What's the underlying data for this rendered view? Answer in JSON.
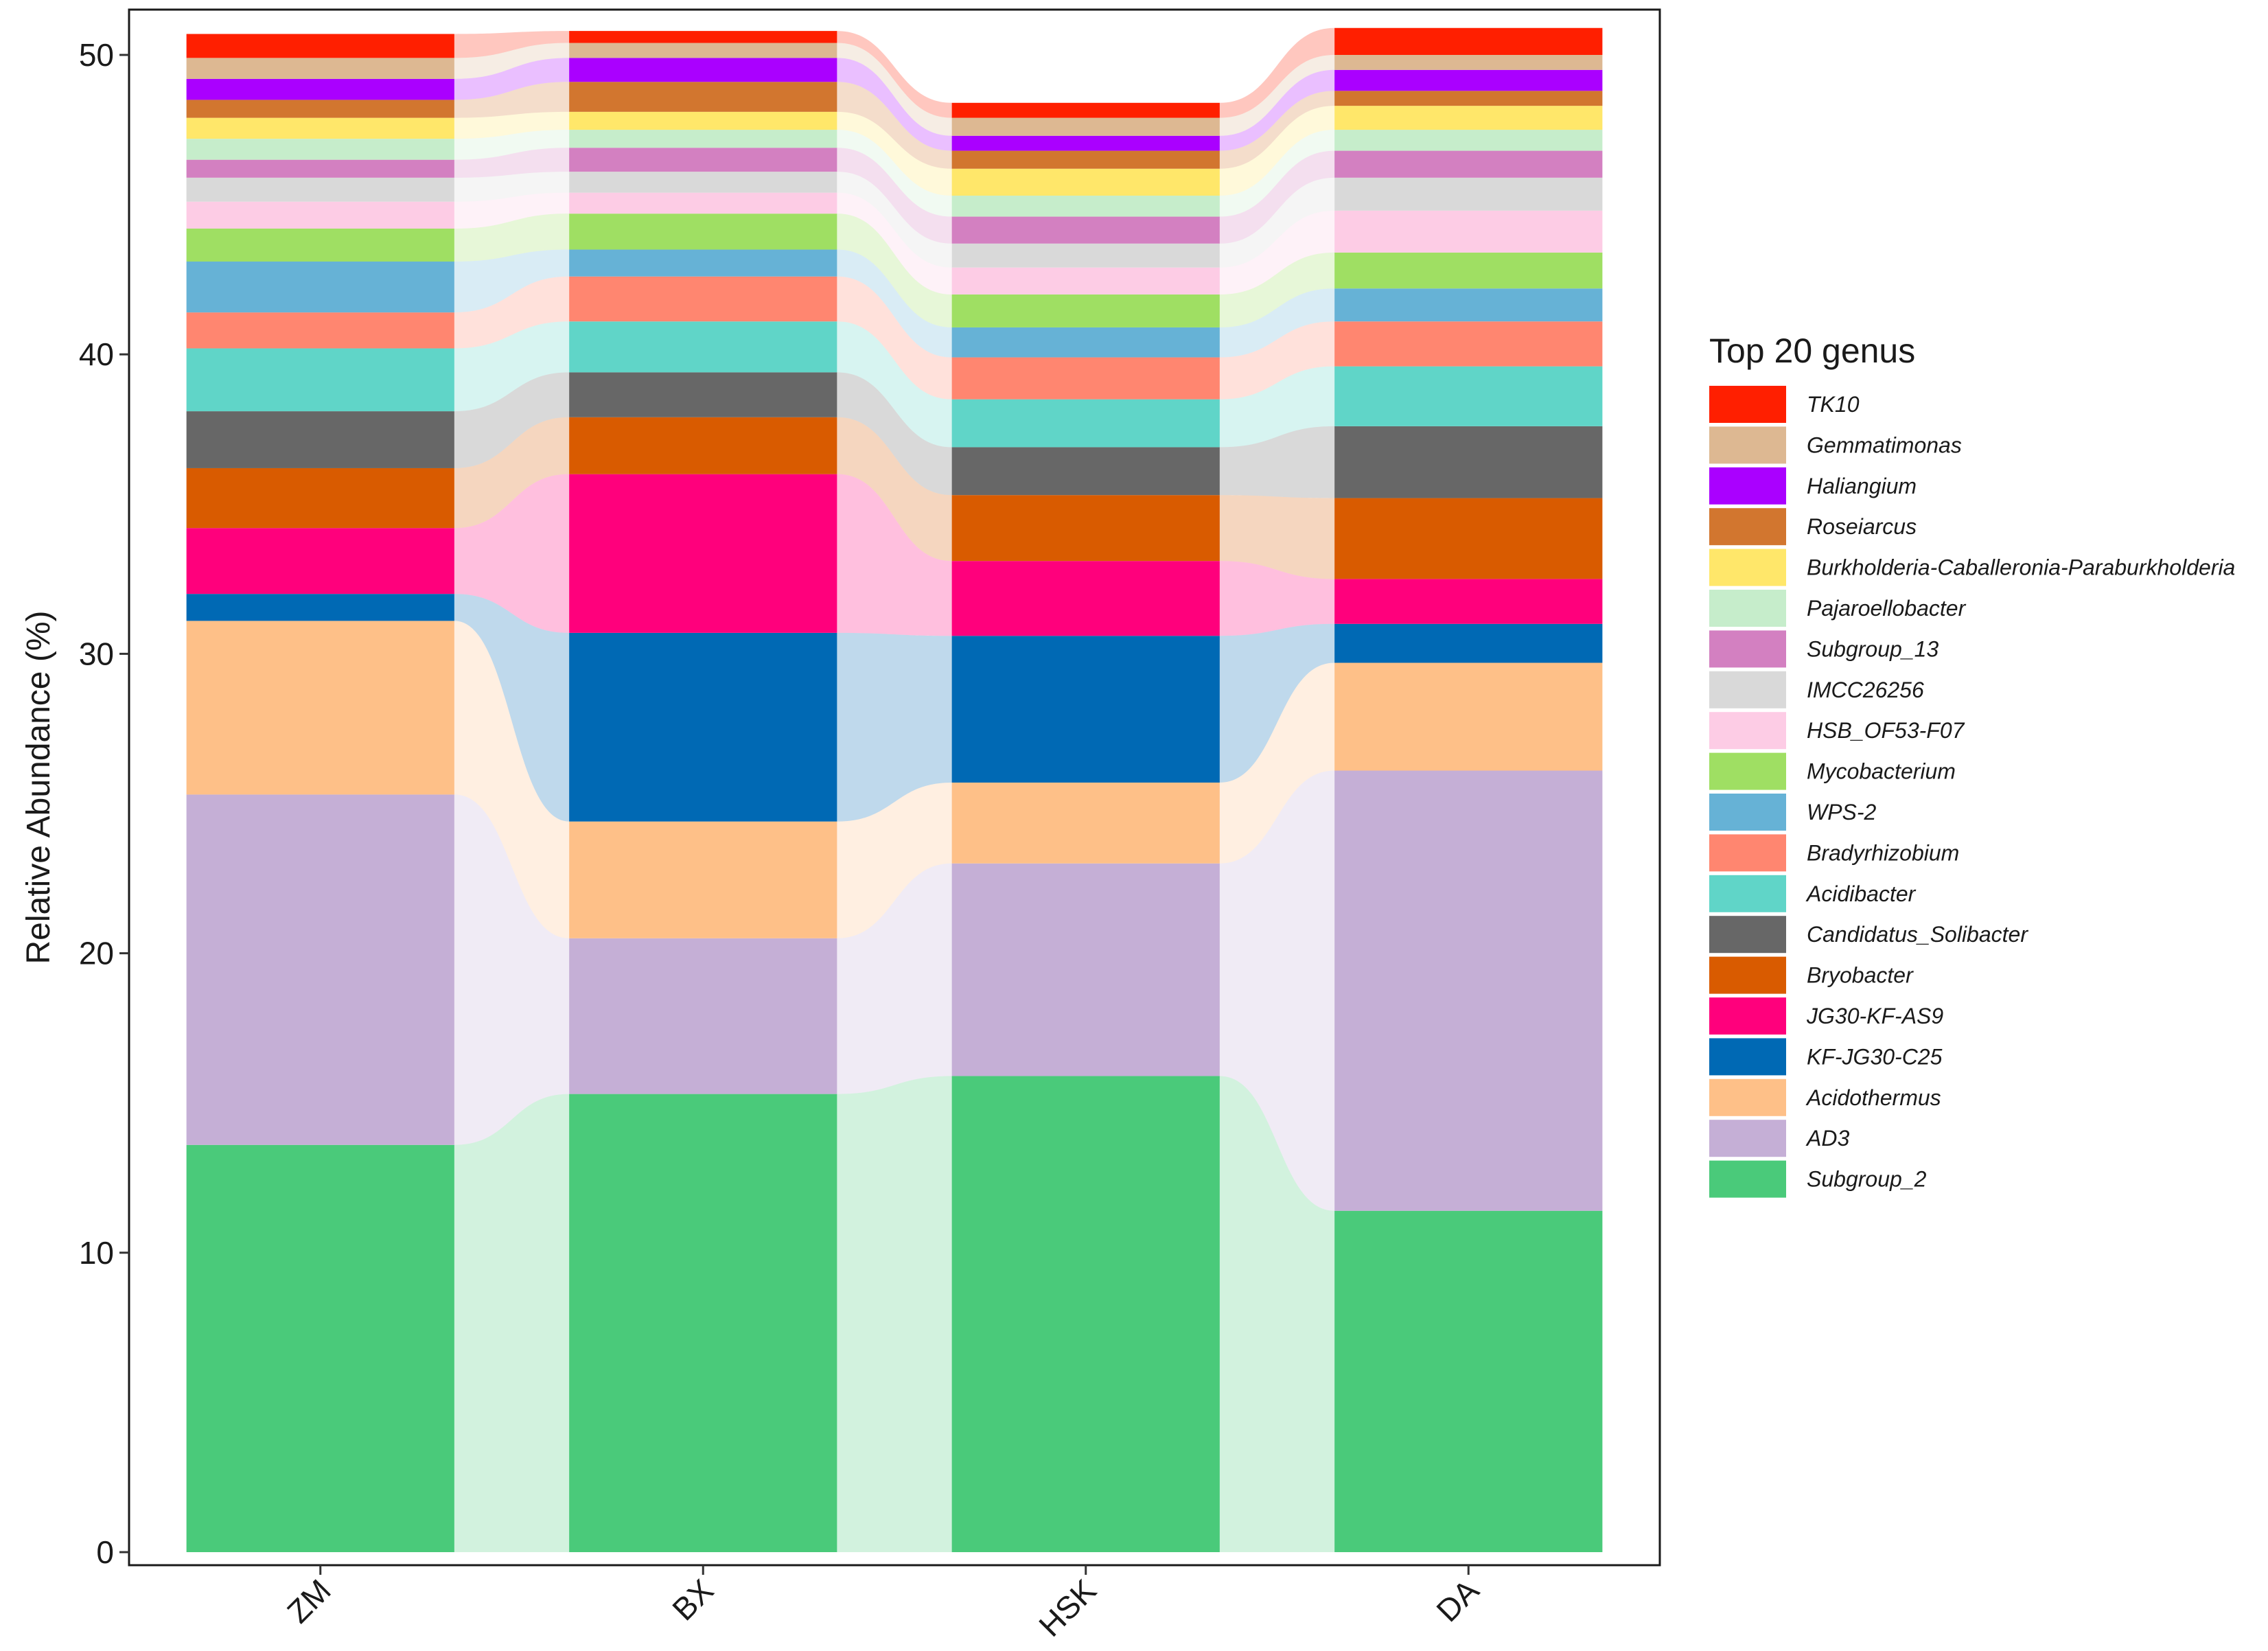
{
  "chart_data": {
    "type": "stacked-bar-alluvial",
    "title": "",
    "xlabel": "",
    "ylabel": "Relative Abundance (%)",
    "ylim": [
      0,
      51.5
    ],
    "yticks": [
      0,
      10,
      20,
      30,
      40,
      50
    ],
    "categories": [
      "ZM",
      "BX",
      "HSK",
      "DA"
    ],
    "legend_title": "Top 20 genus",
    "legend_position": "right",
    "series": [
      {
        "name": "Subgroup_2",
        "color": "#4ACA7A",
        "values": [
          13.6,
          15.3,
          15.9,
          11.4
        ]
      },
      {
        "name": "AD3",
        "color": "#C5AFD6",
        "values": [
          11.7,
          5.2,
          7.1,
          14.7
        ]
      },
      {
        "name": "Acidothermus",
        "color": "#FEC088",
        "values": [
          5.8,
          3.9,
          2.7,
          3.6
        ]
      },
      {
        "name": "KF-JG30-C25",
        "color": "#0069B4",
        "values": [
          0.9,
          6.3,
          4.9,
          1.3
        ]
      },
      {
        "name": "JG30-KF-AS9",
        "color": "#FF007C",
        "values": [
          2.2,
          5.3,
          2.5,
          1.5
        ]
      },
      {
        "name": "Bryobacter",
        "color": "#D95B00",
        "values": [
          2.0,
          1.9,
          2.2,
          2.7
        ]
      },
      {
        "name": "Candidatus_Solibacter",
        "color": "#676767",
        "values": [
          1.9,
          1.5,
          1.6,
          2.4
        ]
      },
      {
        "name": "Acidibacter",
        "color": "#60D5C8",
        "values": [
          2.1,
          1.7,
          1.6,
          2.0
        ]
      },
      {
        "name": "Bradyrhizobium",
        "color": "#FF8670",
        "values": [
          1.2,
          1.5,
          1.4,
          1.5
        ]
      },
      {
        "name": "WPS-2",
        "color": "#66B2D6",
        "values": [
          1.7,
          0.9,
          1.0,
          1.1
        ]
      },
      {
        "name": "Mycobacterium",
        "color": "#9FDF63",
        "values": [
          1.1,
          1.2,
          1.1,
          1.2
        ]
      },
      {
        "name": "HSB_OF53-F07",
        "color": "#FDCCE5",
        "values": [
          0.9,
          0.7,
          0.9,
          1.4
        ]
      },
      {
        "name": "IMCC26256",
        "color": "#D9D9D9",
        "values": [
          0.8,
          0.7,
          0.8,
          1.1
        ]
      },
      {
        "name": "Subgroup_13",
        "color": "#D380C1",
        "values": [
          0.6,
          0.8,
          0.9,
          0.9
        ]
      },
      {
        "name": "Pajaroellobacter",
        "color": "#C6EDCB",
        "values": [
          0.7,
          0.6,
          0.7,
          0.7
        ]
      },
      {
        "name": "Burkholderia-Caballeronia-Paraburkholderia",
        "color": "#FFE76A",
        "values": [
          0.7,
          0.6,
          0.9,
          0.8
        ]
      },
      {
        "name": "Roseiarcus",
        "color": "#D2762F",
        "values": [
          0.6,
          1.0,
          0.6,
          0.5
        ]
      },
      {
        "name": "Haliangium",
        "color": "#AA00FF",
        "values": [
          0.7,
          0.8,
          0.5,
          0.7
        ]
      },
      {
        "name": "Gemmatimonas",
        "color": "#DDB892",
        "values": [
          0.7,
          0.5,
          0.6,
          0.5
        ]
      },
      {
        "name": "TK10",
        "color": "#FF1F00",
        "values": [
          0.8,
          0.4,
          0.5,
          0.9
        ]
      }
    ]
  }
}
